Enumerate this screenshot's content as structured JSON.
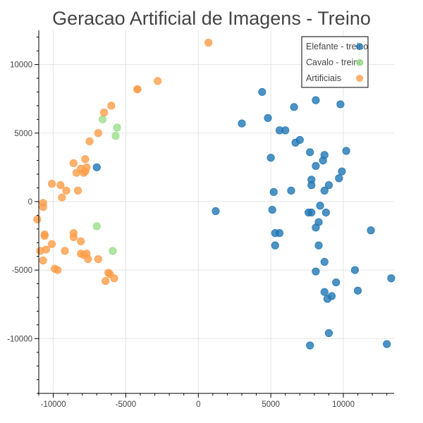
{
  "chart_data": {
    "type": "scatter",
    "title": "Geracao Artificial de Imagens - Treino",
    "xlabel": "",
    "ylabel": "",
    "xlim": [
      -11000,
      13500
    ],
    "ylim": [
      -14000,
      12500
    ],
    "xticks": [
      -10000,
      -5000,
      0,
      5000,
      10000
    ],
    "xtick_labels": [
      "-10000",
      "-5000",
      "0",
      "5000",
      "10000"
    ],
    "yticks": [
      -10000,
      -5000,
      0,
      5000,
      10000
    ],
    "ytick_labels": [
      "-10000",
      "-5000",
      "0",
      "5000",
      "10000"
    ],
    "grid": true,
    "legend_position": "top-right",
    "series": [
      {
        "name": "Elefante - treino",
        "color": "#1f77b4",
        "points": [
          [
            4400,
            8000
          ],
          [
            8100,
            7400
          ],
          [
            9800,
            7100
          ],
          [
            6600,
            6900
          ],
          [
            4800,
            6100
          ],
          [
            3000,
            5700
          ],
          [
            5600,
            5200
          ],
          [
            6000,
            5200
          ],
          [
            7000,
            4500
          ],
          [
            6700,
            4300
          ],
          [
            7700,
            3600
          ],
          [
            8700,
            3400
          ],
          [
            10200,
            3700
          ],
          [
            5000,
            3200
          ],
          [
            8600,
            3000
          ],
          [
            8100,
            2600
          ],
          [
            9900,
            2200
          ],
          [
            9700,
            1700
          ],
          [
            7800,
            1600
          ],
          [
            7800,
            1200
          ],
          [
            9000,
            1200
          ],
          [
            8700,
            800
          ],
          [
            6400,
            800
          ],
          [
            5200,
            700
          ],
          [
            -7000,
            2500
          ],
          [
            1200,
            -700
          ],
          [
            5100,
            -600
          ],
          [
            8400,
            -300
          ],
          [
            7600,
            -800
          ],
          [
            7800,
            -800
          ],
          [
            8800,
            -800
          ],
          [
            8300,
            -1500
          ],
          [
            8100,
            -1900
          ],
          [
            11900,
            -2100
          ],
          [
            5600,
            -2300
          ],
          [
            5300,
            -2300
          ],
          [
            5300,
            -3200
          ],
          [
            8300,
            -3200
          ],
          [
            8700,
            -4400
          ],
          [
            10800,
            -5000
          ],
          [
            8100,
            -5100
          ],
          [
            13300,
            -5600
          ],
          [
            9500,
            -5900
          ],
          [
            8700,
            -6600
          ],
          [
            11000,
            -6500
          ],
          [
            9200,
            -6900
          ],
          [
            8900,
            -7100
          ],
          [
            9000,
            -9600
          ],
          [
            7700,
            -10500
          ],
          [
            13000,
            -10400
          ]
        ]
      },
      {
        "name": "Cavalo - treino",
        "color": "#98df8a",
        "points": [
          [
            -6600,
            6000
          ],
          [
            -5600,
            5400
          ],
          [
            -5700,
            4800
          ],
          [
            -7000,
            -1800
          ],
          [
            -5900,
            -3600
          ]
        ]
      },
      {
        "name": "Artificiais",
        "color": "#ff9e4a",
        "points": [
          [
            700,
            11600
          ],
          [
            -2800,
            8800
          ],
          [
            -4200,
            8200
          ],
          [
            -4200,
            8200
          ],
          [
            -6000,
            7000
          ],
          [
            -6500,
            6500
          ],
          [
            -6900,
            5000
          ],
          [
            -7500,
            4400
          ],
          [
            -7800,
            3100
          ],
          [
            -8600,
            2800
          ],
          [
            -7800,
            2200
          ],
          [
            -8100,
            2400
          ],
          [
            -7700,
            2500
          ],
          [
            -8400,
            2100
          ],
          [
            -7900,
            2100
          ],
          [
            -10100,
            1300
          ],
          [
            -9500,
            1200
          ],
          [
            -9100,
            800
          ],
          [
            -8300,
            800
          ],
          [
            -9400,
            300
          ],
          [
            -10700,
            -100
          ],
          [
            -10700,
            -400
          ],
          [
            -11100,
            -1300
          ],
          [
            -8600,
            -2300
          ],
          [
            -8600,
            -2600
          ],
          [
            -8100,
            -2900
          ],
          [
            -10600,
            -2400
          ],
          [
            -10600,
            -2500
          ],
          [
            -10100,
            -3100
          ],
          [
            -10500,
            -3500
          ],
          [
            -10900,
            -3600
          ],
          [
            -9200,
            -3600
          ],
          [
            -8100,
            -3800
          ],
          [
            -7700,
            -3800
          ],
          [
            -7900,
            -3900
          ],
          [
            -7600,
            -4200
          ],
          [
            -6900,
            -4200
          ],
          [
            -10700,
            -4300
          ],
          [
            -9900,
            -4900
          ],
          [
            -9700,
            -5000
          ],
          [
            -6200,
            -5200
          ],
          [
            -6100,
            -5300
          ],
          [
            -5800,
            -5600
          ],
          [
            -6400,
            -5800
          ]
        ]
      }
    ]
  }
}
